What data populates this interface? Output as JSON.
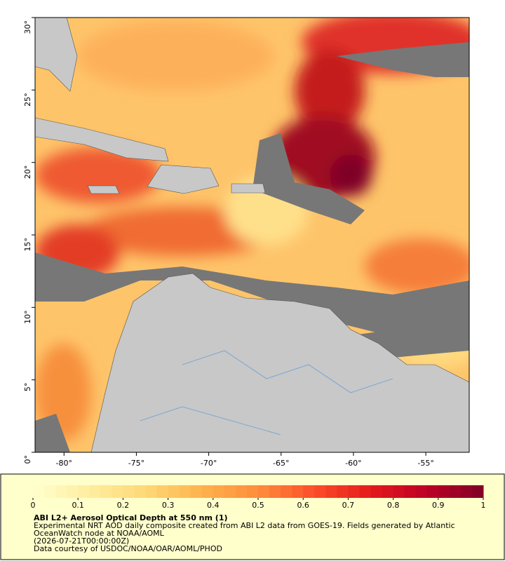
{
  "map": {
    "lonlim": [
      -82,
      -52
    ],
    "latlim": [
      0,
      30
    ],
    "lon_ticks": [
      {
        "value": -80,
        "label": "-80°"
      },
      {
        "value": -75,
        "label": "-75°"
      },
      {
        "value": -70,
        "label": "-70°"
      },
      {
        "value": -65,
        "label": "-65°"
      },
      {
        "value": -60,
        "label": "-60°"
      },
      {
        "value": -55,
        "label": "-55°"
      }
    ],
    "lat_ticks": [
      {
        "value": 0,
        "label": "0°"
      },
      {
        "value": 5,
        "label": "5°"
      },
      {
        "value": 10,
        "label": "10°"
      },
      {
        "value": 15,
        "label": "15°"
      },
      {
        "value": 20,
        "label": "20°"
      },
      {
        "value": 25,
        "label": "25°"
      },
      {
        "value": 30,
        "label": "30°"
      }
    ]
  },
  "colorbar": {
    "lim": [
      0,
      1
    ],
    "ticks": [
      0,
      0.1,
      0.2,
      0.3,
      0.4,
      0.5,
      0.6,
      0.7,
      0.8,
      0.9,
      1
    ],
    "colors": [
      "#ffffcc",
      "#ffeda0",
      "#fed976",
      "#feb24c",
      "#fd8d3c",
      "#fc4e2a",
      "#e31a1c",
      "#bd0026",
      "#800026"
    ]
  },
  "caption": {
    "title": "ABI L2+ Aerosol Optical Depth at 550 nm (1)",
    "lines": [
      "Experimental NRT AOD daily composite created from ABI L2 data from GOES-19. Fields generated by Atlantic",
      "OceanWatch node at NOAA/AOML",
      "(2026-07-21T00:00:00Z)",
      "Data courtesy of USDOC/NOAA/OAR/AOML/PHOD"
    ]
  }
}
